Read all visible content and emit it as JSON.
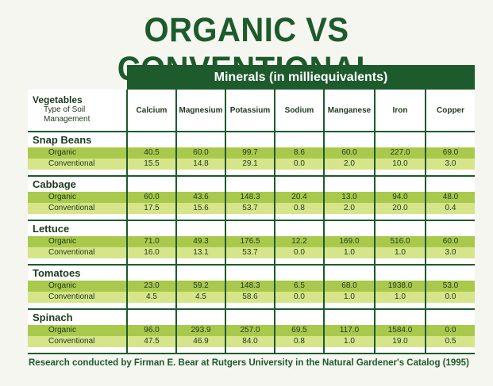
{
  "title": "ORGANIC VS CONVENTIONAL",
  "minerals_header": "Minerals (in milliequivalents)",
  "vegetables_label": "Vegetables",
  "soil_label_1": "Type of Soil",
  "soil_label_2": "Management",
  "columns": [
    "Calcium",
    "Magnesium",
    "Potassium",
    "Sodium",
    "Manganese",
    "Iron",
    "Copper"
  ],
  "vegetables": [
    {
      "name": "Snap Beans",
      "organic_label": "Organic",
      "organic": [
        "40.5",
        "60.0",
        "99.7",
        "8.6",
        "60.0",
        "227.0",
        "69.0"
      ],
      "conventional_label": "Conventional",
      "conventional": [
        "15.5",
        "14.8",
        "29.1",
        "0.0",
        "2.0",
        "10.0",
        "3.0"
      ]
    },
    {
      "name": "Cabbage",
      "organic_label": "Organic",
      "organic": [
        "60.0",
        "43.6",
        "148.3",
        "20.4",
        "13.0",
        "94.0",
        "48.0"
      ],
      "conventional_label": "Conventional",
      "conventional": [
        "17.5",
        "15.6",
        "53.7",
        "0.8",
        "2.0",
        "20.0",
        "0.4"
      ]
    },
    {
      "name": "Lettuce",
      "organic_label": "Organic",
      "organic": [
        "71.0",
        "49.3",
        "176.5",
        "12.2",
        "169.0",
        "516.0",
        "60.0"
      ],
      "conventional_label": "Conventional",
      "conventional": [
        "16.0",
        "13.1",
        "53.7",
        "0.0",
        "1.0",
        "1.0",
        "3.0"
      ]
    },
    {
      "name": "Tomatoes",
      "organic_label": "Organic",
      "organic": [
        "23.0",
        "59.2",
        "148.3",
        "6.5",
        "68.0",
        "1938.0",
        "53.0"
      ],
      "conventional_label": "Conventional",
      "conventional": [
        "4.5",
        "4.5",
        "58.6",
        "0.0",
        "1.0",
        "1.0",
        "0.0"
      ]
    },
    {
      "name": "Spinach",
      "organic_label": "Organic",
      "organic": [
        "96.0",
        "293.9",
        "257.0",
        "69.5",
        "117.0",
        "1584.0",
        "0.0"
      ],
      "conventional_label": "Conventional",
      "conventional": [
        "47.5",
        "46.9",
        "84.0",
        "0.8",
        "1.0",
        "19.0",
        "0.5"
      ]
    }
  ],
  "footer": "Research conducted by Firman E. Bear at Rutgers University in the Natural Gardener's Catalog (1995)",
  "colors": {
    "dark_green": "#1d5a2c",
    "organic_row": "#a9c94c",
    "conventional_row": "#d6e48a",
    "background": "#f5f6ef"
  }
}
